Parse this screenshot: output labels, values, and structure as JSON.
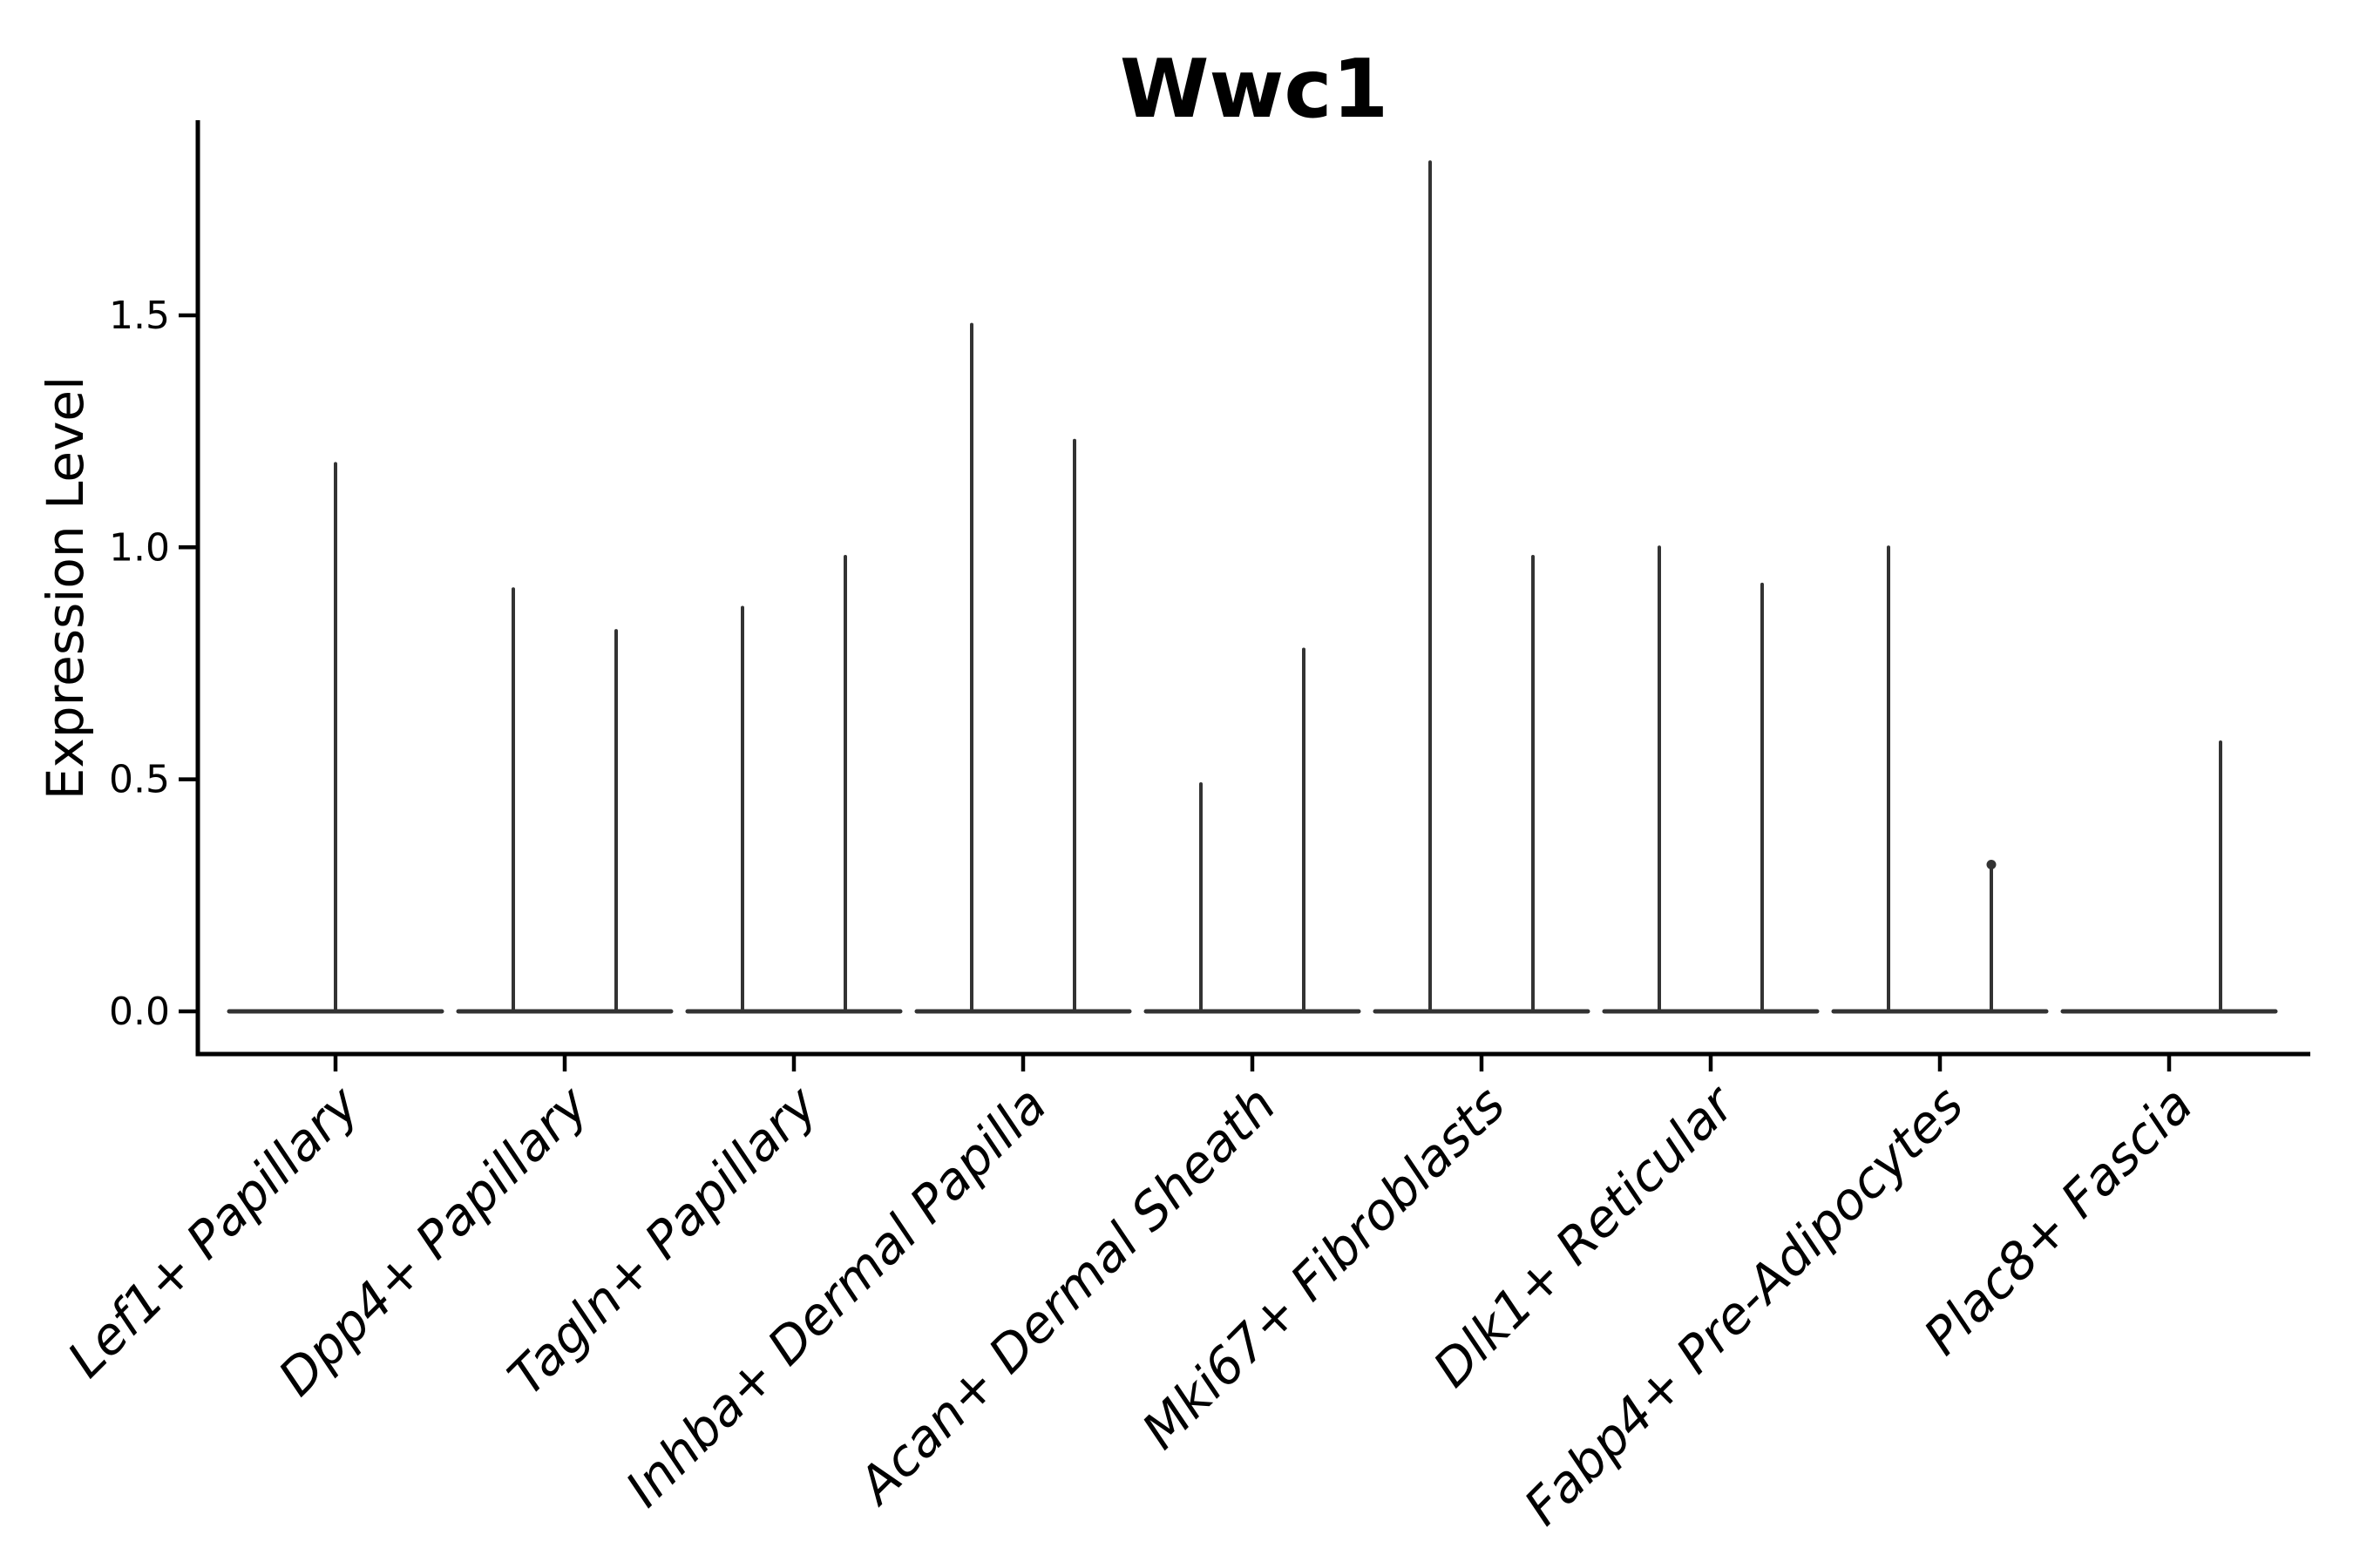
{
  "title": "Wwc1",
  "axes": {
    "ylabel": "Expression Level",
    "ytick_labels": [
      "0.0",
      "0.5",
      "1.0",
      "1.5"
    ],
    "ytick_values": [
      0.0,
      0.5,
      1.0,
      1.5
    ]
  },
  "style": {
    "violin_color": "#333333",
    "axis_color": "#000000",
    "text_color": "#000000",
    "background": "#ffffff"
  },
  "chart_data": {
    "type": "violin",
    "title": "Wwc1",
    "xlabel": "",
    "ylabel": "Expression Level",
    "ylim": [
      -0.09,
      1.92
    ],
    "yticks": [
      0.0,
      0.5,
      1.0,
      1.5
    ],
    "grid": false,
    "legend": null,
    "categories": [
      "Lef1+ Papillary",
      "Dpp4+ Papillary",
      "Tagln+ Papillary",
      "Inhba+ Dermal Papilla",
      "Acan+ Dermal Sheath",
      "Mki67+ Fibroblasts",
      "Dlk1+ Reticular",
      "Fabp4+ Pre-Adipocytes",
      "Plac8+ Fascia"
    ],
    "violins": [
      {
        "category": "Lef1+ Papillary",
        "spikes": [
          {
            "pos": "center",
            "max": 1.18
          }
        ]
      },
      {
        "category": "Dpp4+ Papillary",
        "spikes": [
          {
            "pos": "left",
            "max": 0.91
          },
          {
            "pos": "right",
            "max": 0.82
          }
        ]
      },
      {
        "category": "Tagln+ Papillary",
        "spikes": [
          {
            "pos": "left",
            "max": 0.87
          },
          {
            "pos": "right",
            "max": 0.98
          }
        ]
      },
      {
        "category": "Inhba+ Dermal Papilla",
        "spikes": [
          {
            "pos": "left",
            "max": 1.48
          },
          {
            "pos": "right",
            "max": 1.23
          }
        ]
      },
      {
        "category": "Acan+ Dermal Sheath",
        "spikes": [
          {
            "pos": "left",
            "max": 0.49
          },
          {
            "pos": "right",
            "max": 0.78
          }
        ]
      },
      {
        "category": "Mki67+ Fibroblasts",
        "spikes": [
          {
            "pos": "left",
            "max": 1.83
          },
          {
            "pos": "right",
            "max": 0.98
          }
        ]
      },
      {
        "category": "Dlk1+ Reticular",
        "spikes": [
          {
            "pos": "left",
            "max": 1.0
          },
          {
            "pos": "right",
            "max": 0.92
          }
        ]
      },
      {
        "category": "Fabp4+ Pre-Adipocytes",
        "spikes": [
          {
            "pos": "left",
            "max": 1.0
          },
          {
            "pos": "right",
            "max": 0.32,
            "cap": true
          }
        ]
      },
      {
        "category": "Plac8+ Fascia",
        "spikes": [
          {
            "pos": "right",
            "max": 0.58
          }
        ]
      }
    ]
  }
}
